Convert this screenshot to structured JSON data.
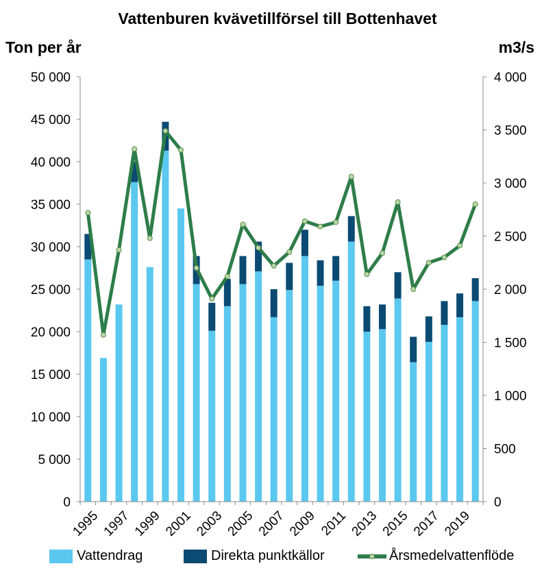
{
  "chart_data": {
    "type": "bar",
    "title": "Vattenburen kvävetillförsel till Bottenhavet",
    "ylabel_left": "Ton per år",
    "ylabel_right": "m3/s",
    "ylim_left": [
      0,
      50000
    ],
    "ylim_right": [
      0,
      4000
    ],
    "yticks_left": [
      "0",
      "5 000",
      "10 000",
      "15 000",
      "20 000",
      "25 000",
      "30 000",
      "35 000",
      "40 000",
      "45 000",
      "50 000"
    ],
    "yticks_right": [
      "0",
      "500",
      "1 000",
      "1 500",
      "2 000",
      "2 500",
      "3 000",
      "3 500",
      "4 000"
    ],
    "x": [
      1995,
      1996,
      1997,
      1998,
      1999,
      2000,
      2001,
      2002,
      2003,
      2004,
      2005,
      2006,
      2007,
      2008,
      2009,
      2010,
      2011,
      2012,
      2013,
      2014,
      2015,
      2016,
      2017,
      2018,
      2019,
      2020
    ],
    "xtick_labels": [
      "1995",
      "1997",
      "1999",
      "2001",
      "2003",
      "2005",
      "2007",
      "2009",
      "2011",
      "2013",
      "2015",
      "2017",
      "2019"
    ],
    "xtick_years": [
      1995,
      1997,
      1999,
      2001,
      2003,
      2005,
      2007,
      2009,
      2011,
      2013,
      2015,
      2017,
      2019
    ],
    "stacked": true,
    "grid": false,
    "legend_position": "bottom",
    "series": [
      {
        "name": "Vattendrag",
        "kind": "bar",
        "axis": "left",
        "color": "#5bc8ef",
        "values": [
          28500,
          16900,
          23200,
          37600,
          27600,
          41300,
          34500,
          25600,
          20100,
          23000,
          25600,
          27100,
          21700,
          24900,
          28900,
          25400,
          26000,
          30600,
          20000,
          20300,
          23900,
          16400,
          18800,
          20800,
          21700,
          23600
        ]
      },
      {
        "name": "Direkta punktkällor",
        "kind": "bar",
        "axis": "left",
        "color": "#0b4a72",
        "values": [
          3000,
          0,
          0,
          2400,
          0,
          3400,
          0,
          3300,
          3300,
          3200,
          3300,
          3500,
          3300,
          3200,
          3100,
          3000,
          2900,
          3000,
          3000,
          2900,
          3100,
          3000,
          3000,
          2800,
          2800,
          2700
        ]
      },
      {
        "name": "Årsmedelvattenflöde",
        "kind": "line",
        "axis": "right",
        "color": "#2e7d4a",
        "values": [
          2720,
          1570,
          2370,
          3320,
          2480,
          3490,
          3310,
          2200,
          1910,
          2120,
          2610,
          2390,
          2220,
          2350,
          2640,
          2590,
          2630,
          3060,
          2140,
          2340,
          2820,
          2000,
          2250,
          2300,
          2410,
          2800
        ]
      }
    ]
  }
}
